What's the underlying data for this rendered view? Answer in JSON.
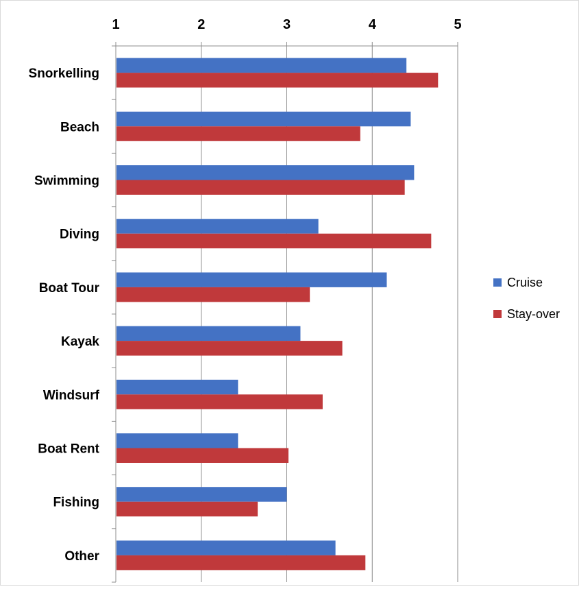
{
  "chart_data": {
    "type": "bar",
    "orientation": "horizontal",
    "categories": [
      "Snorkelling",
      "Beach",
      "Swimming",
      "Diving",
      "Boat Tour",
      "Kayak",
      "Windsurf",
      "Boat Rent",
      "Fishing",
      "Other"
    ],
    "series": [
      {
        "name": "Cruise",
        "color": "#4472C4",
        "values": [
          4.4,
          4.45,
          4.49,
          3.37,
          4.17,
          3.16,
          2.43,
          2.43,
          3.0,
          3.57
        ]
      },
      {
        "name": "Stay-over",
        "color": "#C0393B",
        "values": [
          4.77,
          3.86,
          4.38,
          4.69,
          3.27,
          3.65,
          3.42,
          3.02,
          2.66,
          3.92
        ]
      }
    ],
    "title": "",
    "xlabel": "",
    "ylabel": "",
    "xlim": [
      1,
      5
    ],
    "xticks": [
      "1",
      "2",
      "3",
      "4",
      "5"
    ],
    "axis_position": "top",
    "grid": true,
    "legend_position": "right"
  }
}
